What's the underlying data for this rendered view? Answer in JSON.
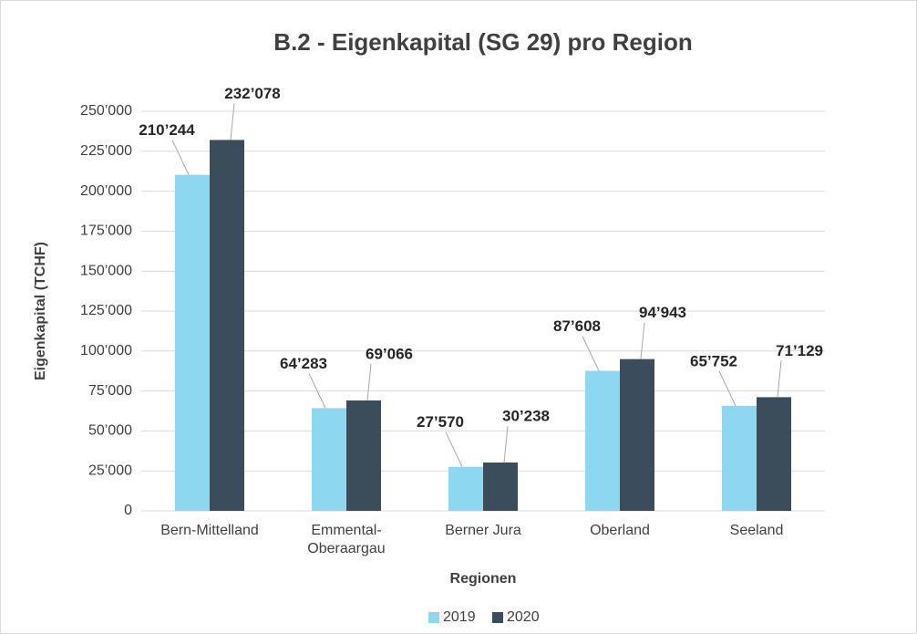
{
  "chart_data": {
    "type": "bar",
    "title": "B.2 - Eigenkapital (SG 29) pro Region",
    "x_label": "Regionen",
    "y_label": "Eigenkapital (TCHF)",
    "categories": [
      "Bern-Mittelland",
      "Emmental-Oberaargau",
      "Berner Jura",
      "Oberland",
      "Seeland"
    ],
    "series": [
      {
        "name": "2019",
        "color": "#8dd7f0",
        "values": [
          210244,
          64283,
          27570,
          87608,
          65752
        ],
        "value_labels": [
          "210’244",
          "64’283",
          "27’570",
          "87’608",
          "65’752"
        ]
      },
      {
        "name": "2020",
        "color": "#3b4d5a",
        "values": [
          232078,
          69066,
          30238,
          94943,
          71129
        ],
        "value_labels": [
          "232’078",
          "69’066",
          "30’238",
          "94’943",
          "71’129"
        ]
      }
    ],
    "ylim": [
      0,
      250000
    ],
    "yticks": [
      0,
      {
        "value": 25000,
        "label": "25’000"
      },
      {
        "value": 50000,
        "label": "50’000"
      },
      {
        "value": 75000,
        "label": "75’000"
      },
      {
        "value": 100000,
        "label": "100’000"
      },
      {
        "value": 125000,
        "label": "125’000"
      },
      {
        "value": 150000,
        "label": "150’000"
      },
      {
        "value": 175000,
        "label": "175’000"
      },
      {
        "value": 200000,
        "label": "200’000"
      },
      {
        "value": 225000,
        "label": "225’000"
      },
      {
        "value": 250000,
        "label": "250’000"
      }
    ],
    "grid": true,
    "legend": "bottom"
  }
}
